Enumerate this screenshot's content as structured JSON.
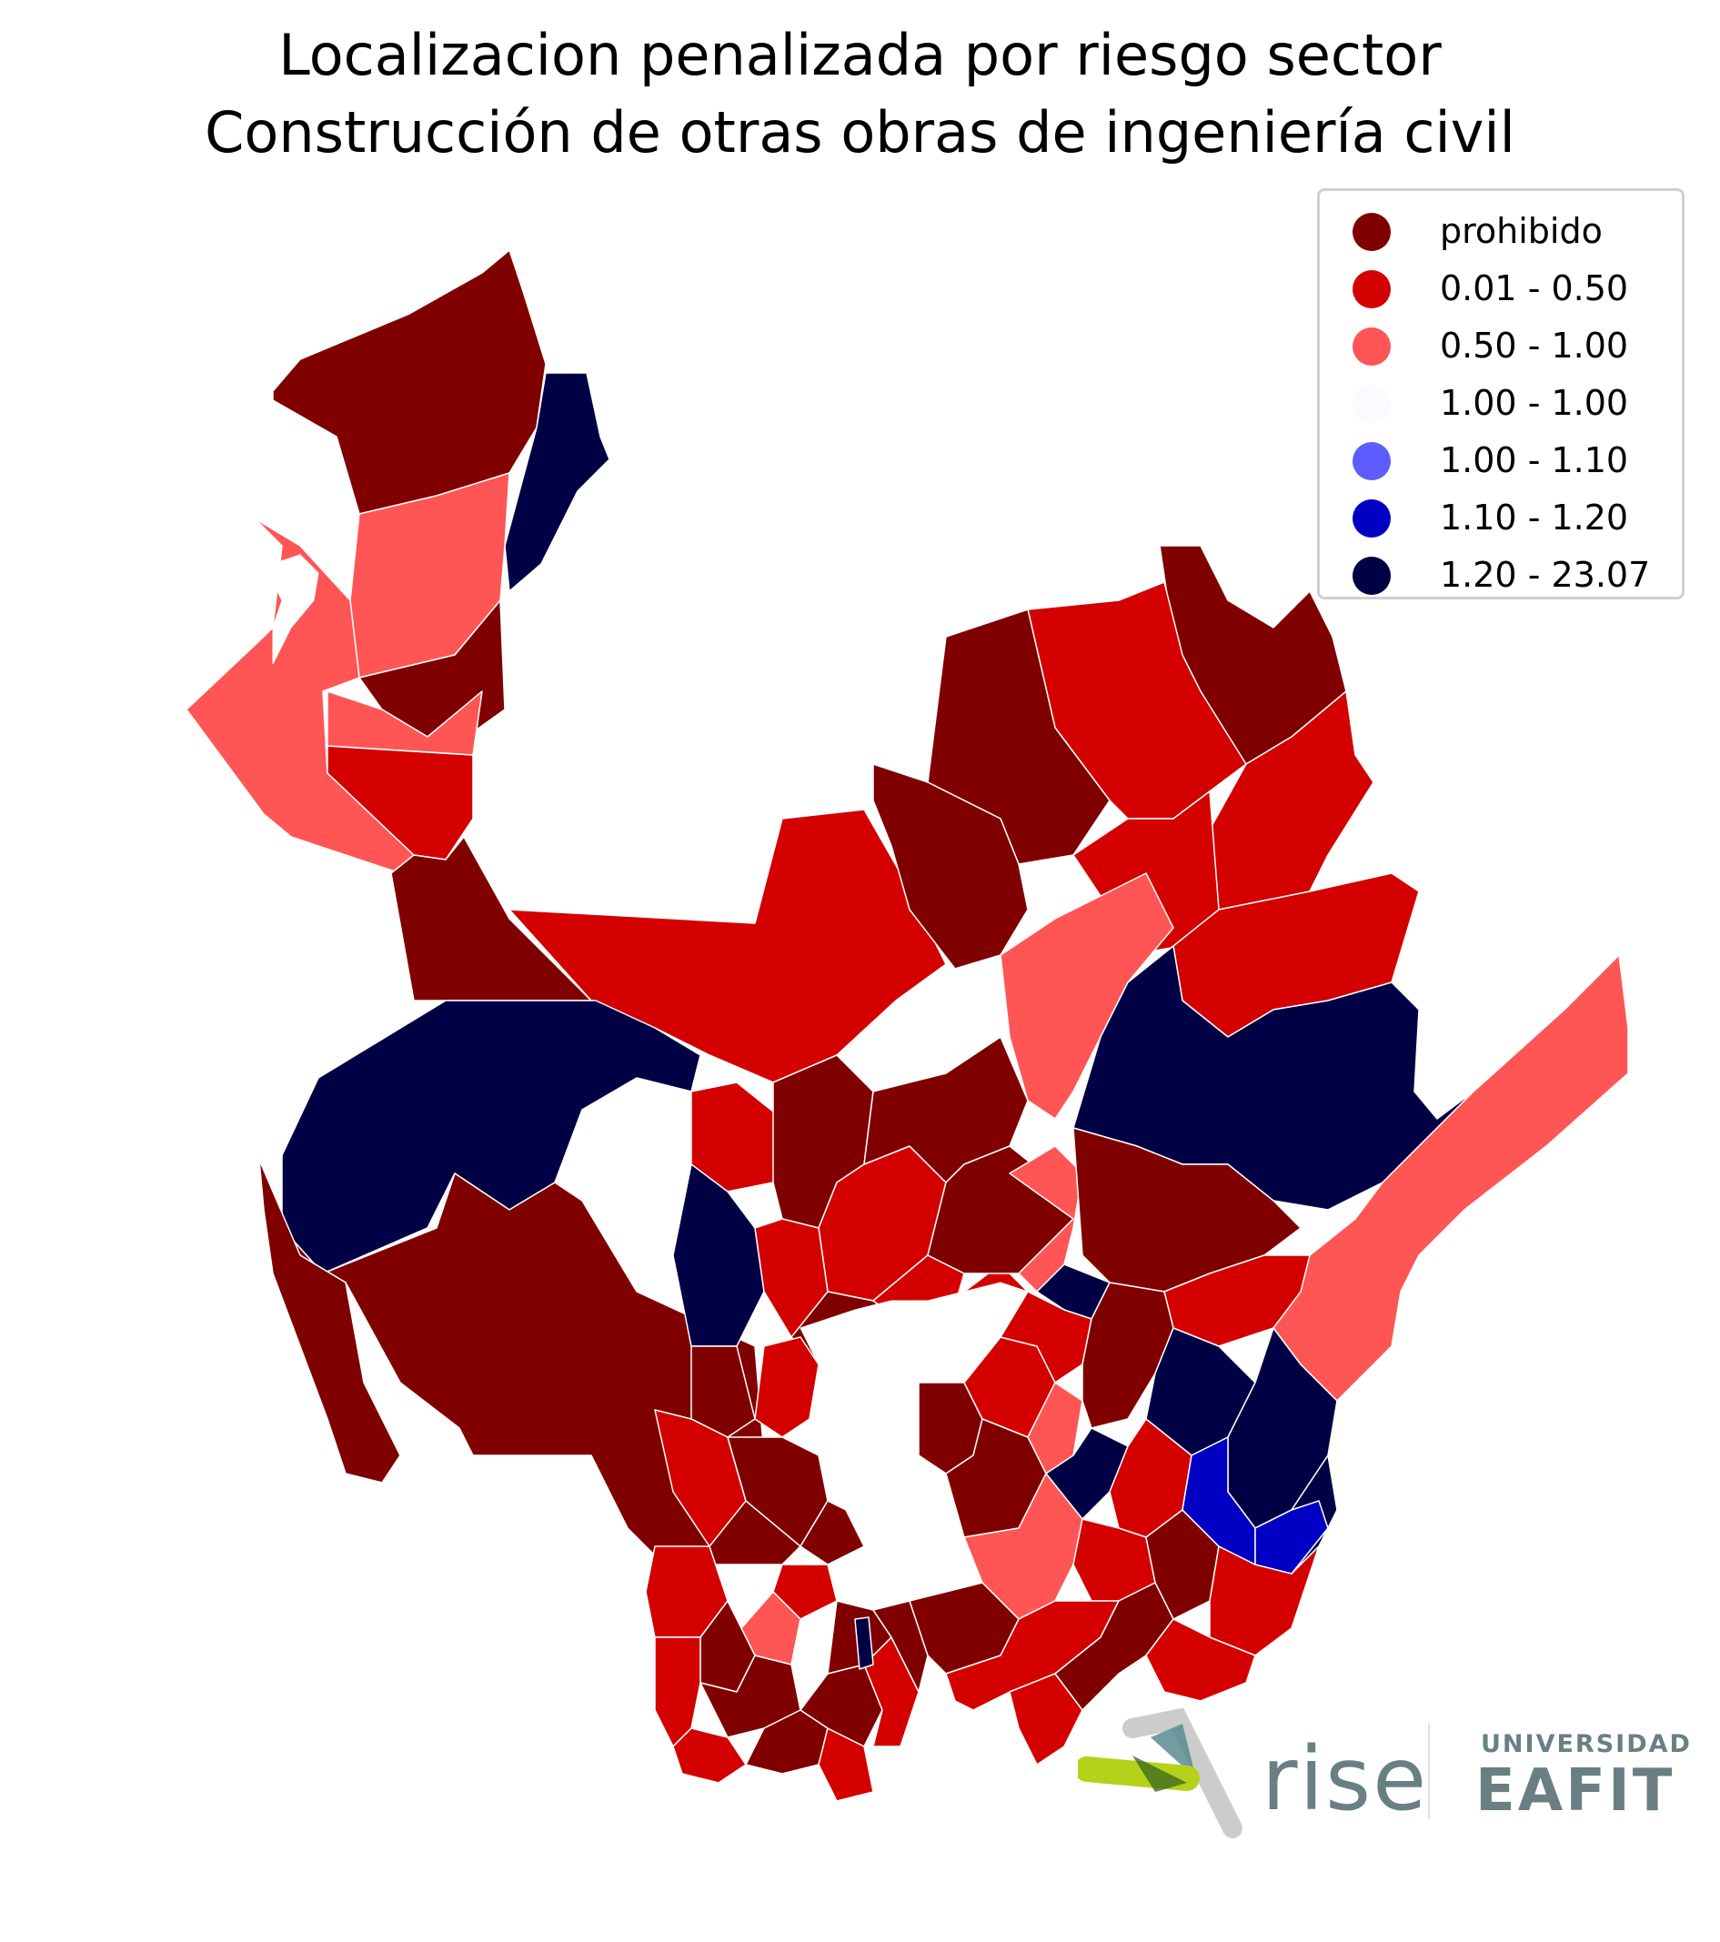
{
  "title": {
    "line1": "Localizacion penalizada por riesgo sector",
    "line2": "Construcción de otras obras de ingeniería civil"
  },
  "legend": [
    {
      "label": "prohibido",
      "color": "#800000"
    },
    {
      "label": "0.01 - 0.50",
      "color": "#d40000"
    },
    {
      "label": "0.50 - 1.00",
      "color": "#ff5555"
    },
    {
      "label": "1.00 - 1.00",
      "color": "#fbfbff"
    },
    {
      "label": "1.00 - 1.10",
      "color": "#5c5cff"
    },
    {
      "label": "1.10 - 1.20",
      "color": "#0000c4"
    },
    {
      "label": "1.20 - 23.07",
      "color": "#000045"
    }
  ],
  "logos": {
    "rise": "rise",
    "eafit_top": "UNIVERSIDAD",
    "eafit_main": "EAFIT"
  }
}
